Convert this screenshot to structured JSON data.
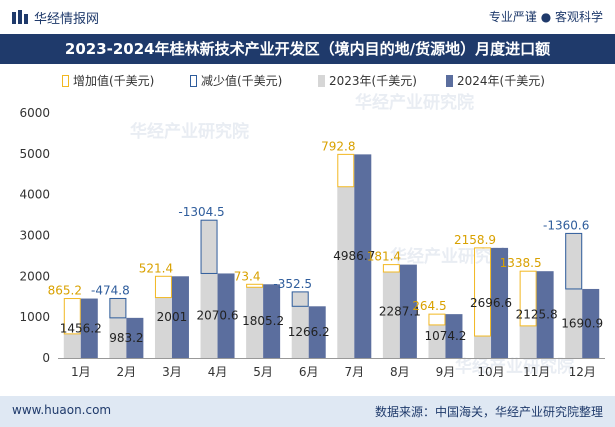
{
  "header": {
    "brand": "华经情报网",
    "slogan": "专业严谨 ● 客观科学"
  },
  "title": "2023-2024年桂林新技术产业开发区（境内目的地/货源地）月度进口额",
  "legend": {
    "increase": "增加值(千美元)",
    "decrease": "减少值(千美元)",
    "y2023": "2023年(千美元)",
    "y2024": "2024年(千美元)"
  },
  "colors": {
    "increase": "#f2b822",
    "decrease": "#2f5d9c",
    "y2023": "#d6d6d6",
    "y2024": "#5b6e9e",
    "title_bg": "#1f3a6b"
  },
  "watermark": "华经产业研究院",
  "footer": {
    "url": "www.huaon.com",
    "source": "数据来源：中国海关，华经产业研究院整理"
  },
  "chart_data": {
    "type": "bar",
    "categories": [
      "1月",
      "2月",
      "3月",
      "4月",
      "5月",
      "6月",
      "7月",
      "8月",
      "9月",
      "10月",
      "11月",
      "12月"
    ],
    "series": [
      {
        "name": "2023年(千美元)",
        "values": [
          591,
          1458,
          1480,
          3375,
          1732,
          1619,
          4194,
          2106,
          810,
          538,
          787,
          3051
        ]
      },
      {
        "name": "2024年(千美元)",
        "values": [
          1456.2,
          983.2,
          2001,
          2070.6,
          1805.2,
          1266.2,
          4986.7,
          2287.1,
          1074.2,
          2696.6,
          2125.8,
          1690.9
        ]
      }
    ],
    "change_labels": [
      "865.2",
      "-474.8",
      "521.4",
      "-1304.5",
      "73.4",
      "-352.5",
      "792.8",
      "181.4",
      "264.5",
      "2158.9",
      "1338.5",
      "-1360.6"
    ],
    "value_labels": [
      "1456.2",
      "983.2",
      "2001",
      "2070.6",
      "1805.2",
      "1266.2",
      "4986.7",
      "2287.1",
      "1074.2",
      "2696.6",
      "2125.8",
      "1690.9"
    ],
    "y_ticks": [
      "0",
      "1000",
      "2000",
      "3000",
      "4000",
      "5000",
      "6000"
    ],
    "ylim": [
      0,
      6000
    ],
    "grid": false,
    "legend_position": "top"
  }
}
